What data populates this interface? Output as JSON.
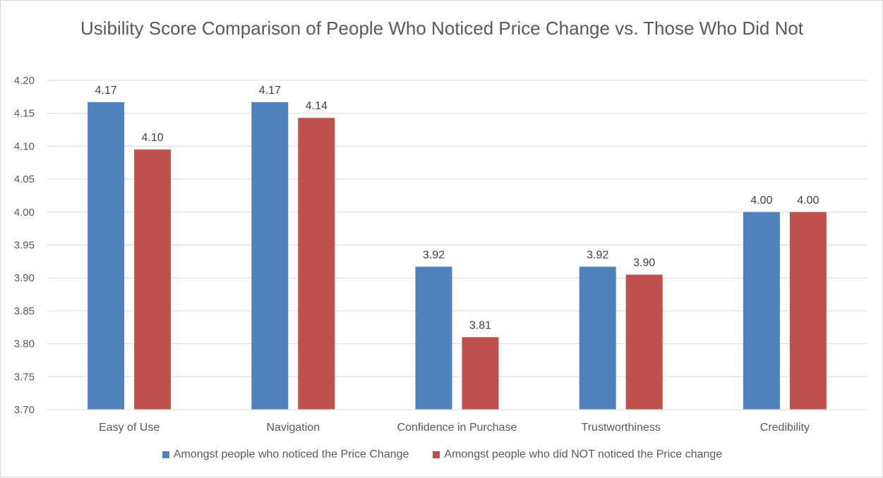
{
  "chart_data": {
    "type": "bar",
    "title": "Usibility Score Comparison of People Who Noticed Price Change vs. Those Who Did Not",
    "categories": [
      "Easy of Use",
      "Navigation",
      "Confidence in Purchase",
      "Trustworthiness",
      "Credibility"
    ],
    "series": [
      {
        "name": "Amongst people who noticed the Price Change",
        "color": "#4f81bd",
        "values": [
          4.167,
          4.167,
          3.917,
          3.917,
          4.0
        ],
        "labels": [
          "4.17",
          "4.17",
          "3.92",
          "3.92",
          "4.00"
        ]
      },
      {
        "name": "Amongst people who did NOT noticed the Price change",
        "color": "#c0504d",
        "values": [
          4.095,
          4.143,
          3.81,
          3.905,
          4.0
        ],
        "labels": [
          "4.10",
          "4.14",
          "3.81",
          "3.90",
          "4.00"
        ]
      }
    ],
    "ylim": [
      3.7,
      4.2
    ],
    "yticks": [
      "3.70",
      "3.75",
      "3.80",
      "3.85",
      "3.90",
      "3.95",
      "4.00",
      "4.05",
      "4.10",
      "4.15",
      "4.20"
    ],
    "grid": true,
    "legend_position": "bottom"
  }
}
